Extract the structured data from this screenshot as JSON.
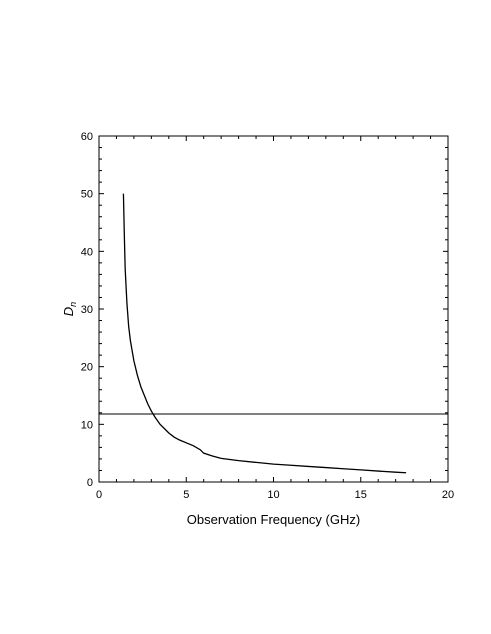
{
  "chart_data": {
    "type": "line",
    "title": "",
    "xlabel": "Observation Frequency (GHz)",
    "ylabel_main": "D",
    "ylabel_sub": "n",
    "xlim": [
      0,
      20
    ],
    "ylim": [
      0,
      60
    ],
    "xticks": [
      0,
      5,
      10,
      15,
      20
    ],
    "yticks": [
      0,
      10,
      20,
      30,
      40,
      50,
      60
    ],
    "grid": false,
    "series": [
      {
        "x": [
          1.4,
          1.45,
          1.5,
          1.6,
          1.7,
          1.8,
          2.0,
          2.2,
          2.4,
          2.6,
          2.8,
          3.0,
          3.2,
          3.5,
          3.8,
          4.0,
          4.3,
          4.6,
          5.0,
          5.4,
          5.8,
          6.0,
          6.5,
          7.0,
          8.0,
          9.0,
          10.0,
          11.0,
          12.0,
          13.0,
          14.0,
          15.0,
          16.0,
          17.0,
          17.6
        ],
        "y": [
          50,
          43,
          37,
          31,
          27,
          24.5,
          21,
          18.5,
          16.5,
          15,
          13.5,
          12.3,
          11.3,
          10,
          9.1,
          8.5,
          7.8,
          7.3,
          6.8,
          6.3,
          5.6,
          5.0,
          4.5,
          4.1,
          3.7,
          3.4,
          3.1,
          2.9,
          2.7,
          2.5,
          2.3,
          2.1,
          1.9,
          1.7,
          1.6
        ]
      }
    ],
    "reference_line": {
      "orientation": "horizontal",
      "y": 11.8
    }
  }
}
